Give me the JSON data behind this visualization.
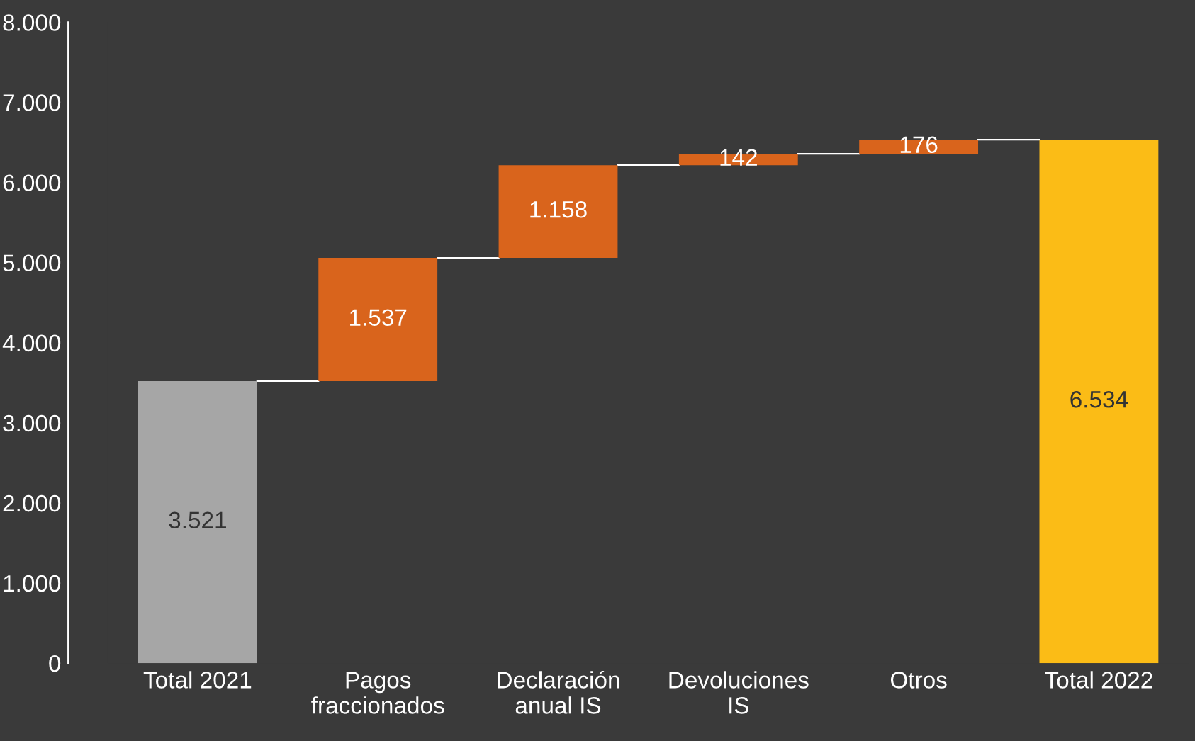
{
  "chart_data": {
    "type": "bar",
    "categories": [
      "Total 2021",
      "Pagos\nfraccionados",
      "Declaración\nanual IS",
      "Devoluciones\nIS",
      "Otros",
      "Total 2022"
    ],
    "values": [
      3521,
      1537,
      1158,
      142,
      176,
      6534
    ],
    "base": [
      0,
      3521,
      5058,
      6216,
      6358,
      0
    ],
    "colors": [
      "#a6a6a6",
      "#d9641c",
      "#d9641c",
      "#d9641c",
      "#d9641c",
      "#fbbc16"
    ],
    "value_labels": [
      "3.521",
      "1.537",
      "1.158",
      "142",
      "176",
      "6.534"
    ],
    "ylim": [
      0,
      8000
    ],
    "yticks": [
      {
        "value": 0,
        "label": "0"
      },
      {
        "value": 1000,
        "label": "1.000"
      },
      {
        "value": 2000,
        "label": "2.000"
      },
      {
        "value": 3000,
        "label": "3.000"
      },
      {
        "value": 4000,
        "label": "4.000"
      },
      {
        "value": 5000,
        "label": "5.000"
      },
      {
        "value": 6000,
        "label": "6.000"
      },
      {
        "value": 7000,
        "label": "7.000"
      },
      {
        "value": 8000,
        "label": "8.000"
      }
    ],
    "grid": false
  }
}
